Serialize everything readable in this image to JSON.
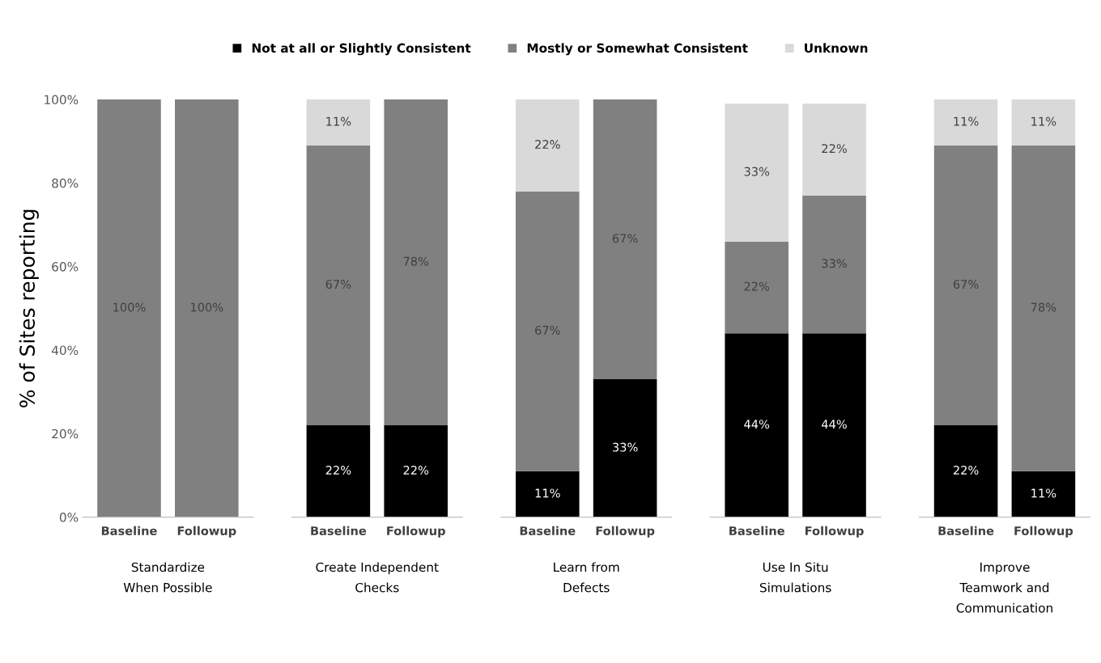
{
  "chart_data": [
    {
      "type": "bar",
      "stacked": true,
      "ylabel": "% of Sites reporting",
      "xlabel": "Standardize\nWhen Possible",
      "legend": "top",
      "categories": [
        "Baseline",
        "Followup"
      ],
      "series": [
        {
          "name": "Not at all or Slightly Consistent",
          "color": "#000000",
          "values": [
            0,
            0
          ],
          "value_labels": [
            null,
            null
          ]
        },
        {
          "name": "Mostly or Somewhat Consistent",
          "color": "#808080",
          "values": [
            100,
            100
          ],
          "value_labels": [
            "100%",
            "100%"
          ]
        },
        {
          "name": "Unknown",
          "color": "#d9d9d9",
          "values": [
            0,
            0
          ],
          "value_labels": [
            null,
            null
          ]
        }
      ],
      "ylim": [
        0,
        100
      ],
      "yticks": [
        {
          "value": 0,
          "label": "0%"
        },
        {
          "value": 20,
          "label": "20%"
        },
        {
          "value": 40,
          "label": "40%"
        },
        {
          "value": 60,
          "label": "60%"
        },
        {
          "value": 80,
          "label": "80%"
        },
        {
          "value": 100,
          "label": "100%"
        }
      ]
    },
    {
      "type": "bar",
      "stacked": true,
      "xlabel": "Create Independent\nChecks",
      "tick_labels": "x",
      "categories": [
        "Baseline",
        "Followup"
      ],
      "series": [
        {
          "color": "#000000",
          "values": [
            22,
            22
          ],
          "value_labels": [
            "22%",
            "22%"
          ]
        },
        {
          "color": "#808080",
          "values": [
            67,
            78
          ],
          "value_labels": [
            "67%",
            "78%"
          ]
        },
        {
          "color": "#d9d9d9",
          "values": [
            11,
            0
          ],
          "value_labels": [
            "11%",
            null
          ]
        }
      ],
      "ylim": [
        0,
        100
      ]
    },
    {
      "type": "bar",
      "stacked": true,
      "xlabel": "Learn from\nDefects",
      "tick_labels": "x",
      "categories": [
        "Baseline",
        "Followup"
      ],
      "series": [
        {
          "color": "#000000",
          "values": [
            11,
            33
          ],
          "value_labels": [
            "11%",
            "33%"
          ]
        },
        {
          "color": "#808080",
          "values": [
            67,
            67
          ],
          "value_labels": [
            "67%",
            "67%"
          ]
        },
        {
          "color": "#d9d9d9",
          "values": [
            22,
            0
          ],
          "value_labels": [
            "22%",
            null
          ]
        }
      ],
      "ylim": [
        0,
        100
      ]
    },
    {
      "type": "bar",
      "stacked": true,
      "xlabel": "Use In Situ\nSimulations",
      "tick_labels": "x",
      "categories": [
        "Baseline",
        "Followup"
      ],
      "series": [
        {
          "color": "#000000",
          "values": [
            44,
            44
          ],
          "value_labels": [
            "44%",
            "44%"
          ]
        },
        {
          "color": "#808080",
          "values": [
            22,
            33
          ],
          "value_labels": [
            "22%",
            "33%"
          ]
        },
        {
          "color": "#d9d9d9",
          "values": [
            33,
            22
          ],
          "value_labels": [
            "33%",
            "22%"
          ]
        }
      ],
      "ylim": [
        0,
        100
      ]
    },
    {
      "type": "bar",
      "stacked": true,
      "xlabel": "Improve\nTeamwork and\nCommunication",
      "tick_labels": "x",
      "categories": [
        "Baseline",
        "Followup"
      ],
      "series": [
        {
          "color": "#000000",
          "values": [
            22,
            11
          ],
          "value_labels": [
            "22%",
            "11%"
          ]
        },
        {
          "color": "#808080",
          "values": [
            67,
            78
          ],
          "value_labels": [
            "67%",
            "78%"
          ]
        },
        {
          "color": "#d9d9d9",
          "values": [
            11,
            11
          ],
          "value_labels": [
            "11%",
            "11%"
          ]
        }
      ],
      "ylim": [
        0,
        100
      ]
    }
  ]
}
